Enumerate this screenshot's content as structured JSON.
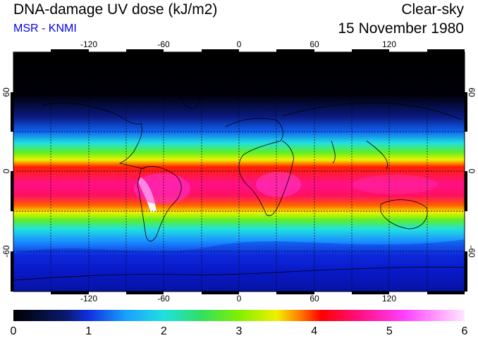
{
  "title": "DNA-damage UV dose (kJ/m2)",
  "subtitle": "MSR - KNMI",
  "condition": "Clear-sky",
  "date": "15 November 1980",
  "map": {
    "lon_ticks": [
      "-120",
      "-60",
      "0",
      "60",
      "120"
    ],
    "lat_ticks_left": [
      "60",
      "0",
      "-60"
    ],
    "lat_ticks_right": [
      "60",
      "0",
      "-60"
    ],
    "grid": "dotted 30-degree graticule",
    "projection": "equirectangular"
  },
  "colorbar": {
    "labels": [
      "0",
      "1",
      "2",
      "3",
      "4",
      "5",
      "6"
    ],
    "stops": [
      {
        "value": 0,
        "color": "#000000"
      },
      {
        "value": 0.7,
        "color": "#0a1a6e"
      },
      {
        "value": 1.0,
        "color": "#1030e0"
      },
      {
        "value": 1.5,
        "color": "#1aa0ff"
      },
      {
        "value": 2.0,
        "color": "#20e0e0"
      },
      {
        "value": 2.5,
        "color": "#30e060"
      },
      {
        "value": 3.0,
        "color": "#80f000"
      },
      {
        "value": 3.5,
        "color": "#f0f000"
      },
      {
        "value": 3.8,
        "color": "#ff8000"
      },
      {
        "value": 4.1,
        "color": "#ff0000"
      },
      {
        "value": 4.6,
        "color": "#ff1080"
      },
      {
        "value": 5.2,
        "color": "#ff40ff"
      },
      {
        "value": 6.0,
        "color": "#ffe8ff"
      }
    ]
  }
}
